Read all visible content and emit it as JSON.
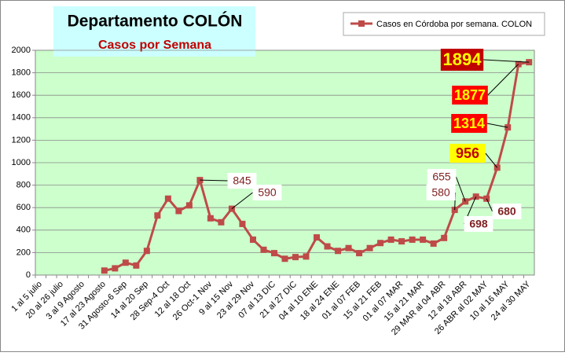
{
  "chart_data": {
    "type": "line",
    "title": "Departamento COLÓN",
    "subtitle": "Casos por Semana",
    "categories": [
      "1 al 5 julio",
      null,
      "20 al 26 julio",
      null,
      "3 al 9 Agosto",
      null,
      "17 al 23 Agosto",
      null,
      "31 Agosto-6 Sep",
      null,
      "14 al 20 Sep",
      null,
      "28 Sep-4 Oct",
      null,
      "12 al 18 Oct",
      null,
      "26 Oct-1 Nov",
      null,
      "9 al 15 Nov",
      null,
      "23 al 29 Nov",
      null,
      "07 al 13 DIC",
      null,
      "21 al 27 DIC",
      null,
      "04 al 10 ENE",
      null,
      "18 al 24 ENE",
      null,
      "01 al 07 FEB",
      null,
      "15 al 21 FEB",
      null,
      "01 al 07 MAR",
      null,
      "15 al 21 MAR",
      null,
      "29 MAR al 04 ABR",
      null,
      "12 al 18 ABR",
      null,
      "26 ABR al 02 MAY",
      null,
      "10 al 16 MAY",
      null,
      "24 al 30 MAY"
    ],
    "series": [
      {
        "name": "Casos en Córdoba por semana. COLON",
        "color": "#be4b48",
        "values": [
          null,
          null,
          null,
          null,
          null,
          null,
          40,
          60,
          110,
          85,
          215,
          530,
          680,
          570,
          620,
          845,
          505,
          470,
          590,
          455,
          315,
          225,
          195,
          145,
          160,
          165,
          335,
          255,
          215,
          240,
          195,
          240,
          285,
          315,
          300,
          315,
          315,
          280,
          330,
          580,
          655,
          698,
          680,
          956,
          1314,
          1877,
          1894
        ]
      }
    ],
    "data_labels": [
      {
        "index": 15,
        "style": "plain"
      },
      {
        "index": 18,
        "style": "plain"
      },
      {
        "index": 39,
        "style": "plain"
      },
      {
        "index": 40,
        "style": "plain"
      },
      {
        "index": 41,
        "style": "bold"
      },
      {
        "index": 42,
        "style": "bold"
      },
      {
        "index": 43,
        "style": "yellow"
      },
      {
        "index": 44,
        "style": "red"
      },
      {
        "index": 45,
        "style": "red"
      },
      {
        "index": 46,
        "style": "big"
      }
    ],
    "ylim": [
      0,
      2000
    ],
    "yticks": [
      0,
      200,
      400,
      600,
      800,
      1000,
      1200,
      1400,
      1600,
      1800,
      2000
    ],
    "grid": true,
    "legend": "top-right"
  }
}
